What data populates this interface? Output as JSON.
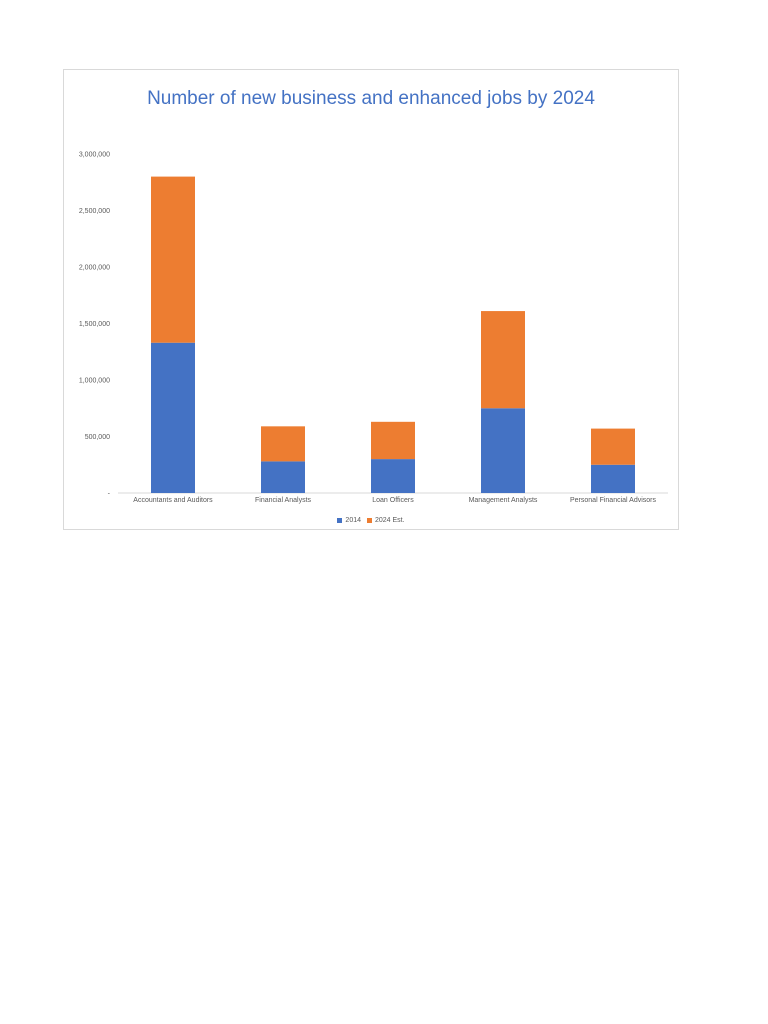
{
  "chart_data": {
    "type": "bar",
    "stacked": true,
    "title": "Number of new business and enhanced jobs by 2024",
    "xlabel": "",
    "ylabel": "",
    "ylim": [
      0,
      3000000
    ],
    "yticks": [
      0,
      500000,
      1000000,
      1500000,
      2000000,
      2500000,
      3000000
    ],
    "ytick_labels": [
      "-",
      "500,000",
      "1,000,000",
      "1,500,000",
      "2,000,000",
      "2,500,000",
      "3,000,000"
    ],
    "categories": [
      "Accountants and Auditors",
      "Financial Analysts",
      "Loan Officers",
      "Management Analysts",
      "Personal Financial Advisors"
    ],
    "series": [
      {
        "name": "2014",
        "color": "#4472c4",
        "values": [
          1330000,
          280000,
          300000,
          750000,
          250000
        ]
      },
      {
        "name": "2024 Est.",
        "color": "#ed7d31",
        "values": [
          1470000,
          310000,
          330000,
          860000,
          320000
        ]
      }
    ],
    "grid": false,
    "legend_position": "bottom"
  }
}
